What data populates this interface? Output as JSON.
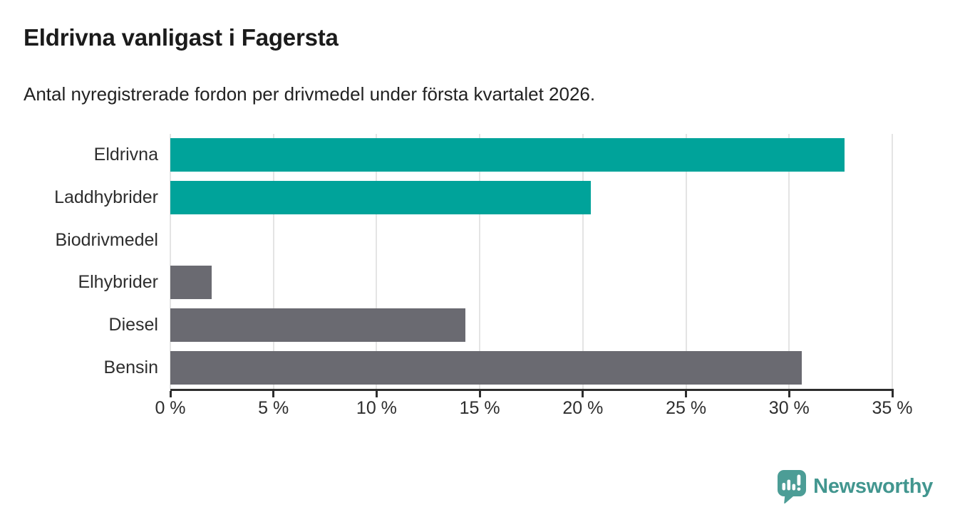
{
  "title": "Eldrivna vanligast i Fagersta",
  "subtitle": "Antal nyregistrerade fordon per drivmedel under första kvartalet 2026.",
  "branding": {
    "logo_text": "Newsworthy",
    "logo_icon": "newsworthy-speech-bubble-chart-icon",
    "logo_text_color": "#42968f",
    "logo_icon_color": "#4c9d96"
  },
  "colors": {
    "highlight_teal": "#00a39a",
    "neutral_gray": "#6a6a71",
    "axis": "#2d2d2d",
    "gridline": "#e4e4e4",
    "label_text": "#2e2e2e",
    "title_text": "#1b1b1b",
    "background": "#ffffff"
  },
  "chart_data": {
    "type": "bar",
    "orientation": "horizontal",
    "title": "Eldrivna vanligast i Fagersta",
    "subtitle": "Antal nyregistrerade fordon per drivmedel under första kvartalet 2026.",
    "categories": [
      "Eldrivna",
      "Laddhybrider",
      "Biodrivmedel",
      "Elhybrider",
      "Diesel",
      "Bensin"
    ],
    "values": [
      32.7,
      20.4,
      0,
      2.0,
      14.3,
      30.6
    ],
    "unit": "%",
    "bar_colors": [
      "#00a39a",
      "#00a39a",
      "#6a6a71",
      "#6a6a71",
      "#6a6a71",
      "#6a6a71"
    ],
    "xlabel": "",
    "ylabel": "",
    "xlim": [
      0,
      35
    ],
    "x_tick_values": [
      0,
      5,
      10,
      15,
      20,
      25,
      30,
      35
    ],
    "x_tick_labels": [
      "0 %",
      "5 %",
      "10 %",
      "15 %",
      "20 %",
      "25 %",
      "30 %",
      "35 %"
    ],
    "grid": true,
    "legend": false
  }
}
